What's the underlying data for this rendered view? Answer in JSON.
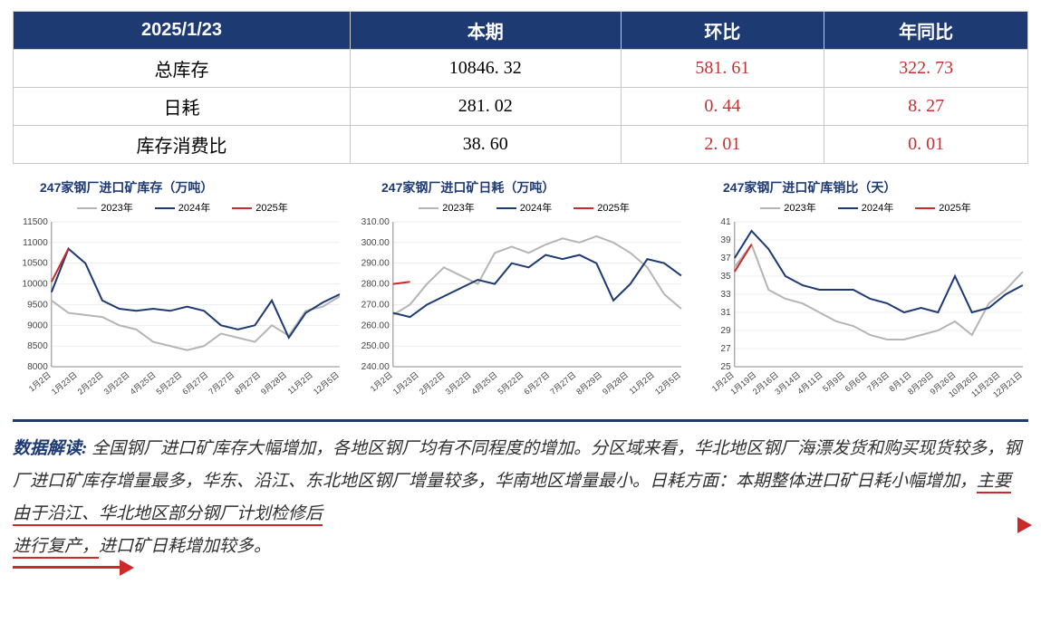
{
  "table": {
    "headers": [
      "2025/1/23",
      "本期",
      "环比",
      "年同比"
    ],
    "rows": [
      {
        "label": "总库存",
        "vals": [
          "10846. 32",
          "581. 61",
          "322. 73"
        ]
      },
      {
        "label": "日耗",
        "vals": [
          "281. 02",
          "0. 44",
          "8. 27"
        ]
      },
      {
        "label": "库存消费比",
        "vals": [
          "38. 60",
          "2. 01",
          "0. 01"
        ]
      }
    ]
  },
  "legend_labels": [
    "2023年",
    "2024年",
    "2025年"
  ],
  "legend_colors": [
    "#b5b5b5",
    "#1e3a73",
    "#cc2a2a"
  ],
  "charts": [
    {
      "title": "247家钢厂进口矿库存（万吨）",
      "ylim": [
        8000,
        11500
      ],
      "ytick_step": 500,
      "background": "#ffffff",
      "grid_color": "#dddddd",
      "xticks": [
        "1月2日",
        "1月23日",
        "2月22日",
        "3月22日",
        "4月25日",
        "5月22日",
        "6月27日",
        "7月27日",
        "8月27日",
        "9月28日",
        "11月2日",
        "12月5日"
      ],
      "series": [
        {
          "name": "2023年",
          "color": "#b5b5b5",
          "y": [
            9600,
            9300,
            9250,
            9200,
            9000,
            8900,
            8600,
            8500,
            8400,
            8500,
            8800,
            8700,
            8600,
            9000,
            8750,
            9350,
            9450,
            9700
          ]
        },
        {
          "name": "2024年",
          "color": "#1e3a73",
          "y": [
            9800,
            10850,
            10500,
            9600,
            9400,
            9350,
            9400,
            9350,
            9450,
            9350,
            9000,
            8900,
            9000,
            9600,
            8700,
            9300,
            9550,
            9750
          ]
        },
        {
          "name": "2025年",
          "color": "#cc2a2a",
          "y": [
            10050,
            10850
          ],
          "width": 2.5
        }
      ]
    },
    {
      "title": "247家钢厂进口矿日耗（万吨）",
      "ylim": [
        240,
        310
      ],
      "ytick_step": 10,
      "background": "#ffffff",
      "grid_color": "#dddddd",
      "xticks": [
        "1月2日",
        "1月23日",
        "2月22日",
        "3月22日",
        "4月25日",
        "5月22日",
        "6月27日",
        "7月27日",
        "8月29日",
        "9月28日",
        "11月2日",
        "12月5日"
      ],
      "series": [
        {
          "name": "2023年",
          "color": "#b5b5b5",
          "y": [
            265,
            270,
            280,
            288,
            284,
            280,
            295,
            298,
            295,
            299,
            302,
            300,
            303,
            300,
            295,
            288,
            275,
            268
          ]
        },
        {
          "name": "2024年",
          "color": "#1e3a73",
          "y": [
            266,
            264,
            270,
            274,
            278,
            282,
            280,
            290,
            288,
            294,
            292,
            294,
            290,
            272,
            280,
            292,
            290,
            284
          ]
        },
        {
          "name": "2025年",
          "color": "#cc2a2a",
          "y": [
            280,
            281
          ],
          "width": 2.5
        }
      ]
    },
    {
      "title": "247家钢厂进口矿库销比（天）",
      "ylim": [
        25,
        41
      ],
      "ytick_step": 2,
      "background": "#ffffff",
      "grid_color": "#dddddd",
      "xticks": [
        "1月2日",
        "1月19日",
        "2月16日",
        "3月14日",
        "4月11日",
        "5月9日",
        "6月6日",
        "7月3日",
        "8月1日",
        "8月29日",
        "9月26日",
        "10月26日",
        "11月23日",
        "12月21日"
      ],
      "series": [
        {
          "name": "2023年",
          "color": "#b5b5b5",
          "y": [
            36,
            38.5,
            33.5,
            32.5,
            32,
            31,
            30,
            29.5,
            28.5,
            28,
            28,
            28.5,
            29,
            30,
            28.5,
            32,
            33.5,
            35.5
          ]
        },
        {
          "name": "2024年",
          "color": "#1e3a73",
          "y": [
            37,
            40,
            38,
            35,
            34,
            33.5,
            33.5,
            33.5,
            32.5,
            32,
            31,
            31.5,
            31,
            35,
            31,
            31.5,
            33,
            34
          ]
        },
        {
          "name": "2025年",
          "color": "#cc2a2a",
          "y": [
            35.5,
            38.5
          ],
          "width": 2.5
        }
      ]
    }
  ],
  "interpretation": {
    "header": "数据解读:",
    "segments": [
      {
        "t": " 全国钢厂进口矿库存大幅增加，各地区钢厂均有不同程度的增加。分区域来看，华北地区钢厂海漂发货和购买现货较多，钢厂进口矿库存增量最多，华东、沿江、东北地区钢厂增量较多，华南地区增量最小。日耗方面：本期整体进口矿日耗小幅增加，",
        "u": false
      },
      {
        "t": "主要由于沿江、华北地区部分钢厂计划检修后",
        "u": true
      },
      {
        "t": "进行复产，",
        "u": true,
        "break_before": true
      },
      {
        "t": "进口矿日耗增加较多。",
        "u": false
      }
    ]
  }
}
